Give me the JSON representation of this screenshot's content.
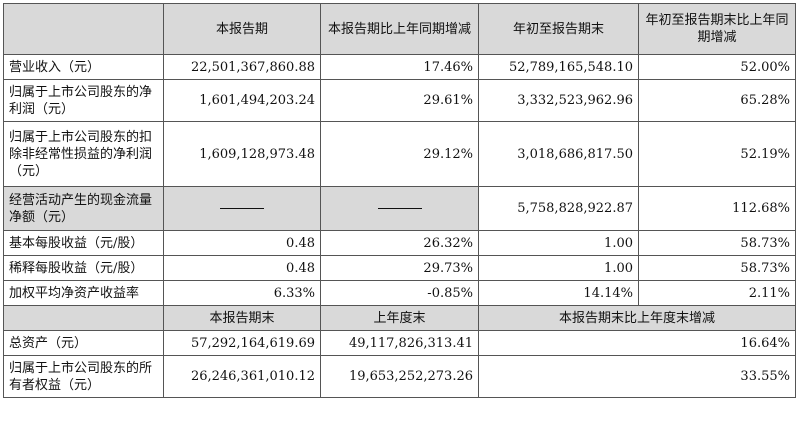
{
  "header": {
    "c1": "本报告期",
    "c2": "本报告期比上年同期增减",
    "c3": "年初至报告期末",
    "c4": "年初至报告期末比上年同期增减"
  },
  "rows": [
    {
      "label": "营业收入（元）",
      "v1": "22,501,367,860.88",
      "v2": "17.46%",
      "v3": "52,789,165,548.10",
      "v4": "52.00%"
    },
    {
      "label": "归属于上市公司股东的净利润（元）",
      "v1": "1,601,494,203.24",
      "v2": "29.61%",
      "v3": "3,332,523,962.96",
      "v4": "65.28%"
    },
    {
      "label": "归属于上市公司股东的扣除非经常性损益的净利润（元）",
      "v1": "1,609,128,973.48",
      "v2": "29.12%",
      "v3": "3,018,686,817.50",
      "v4": "52.19%"
    },
    {
      "label": "经营活动产生的现金流量净额（元）",
      "v1": "——",
      "v2": "——",
      "v3": "5,758,828,922.87",
      "v4": "112.68%"
    },
    {
      "label": "基本每股收益（元/股）",
      "v1": "0.48",
      "v2": "26.32%",
      "v3": "1.00",
      "v4": "58.73%"
    },
    {
      "label": "稀释每股收益（元/股）",
      "v1": "0.48",
      "v2": "29.73%",
      "v3": "1.00",
      "v4": "58.73%"
    },
    {
      "label": "加权平均净资产收益率",
      "v1": "6.33%",
      "v2": "-0.85%",
      "v3": "14.14%",
      "v4": "2.11%"
    }
  ],
  "header2": {
    "c1": "本报告期末",
    "c2": "上年度末",
    "c3": "本报告期末比上年度末增减"
  },
  "rows2": [
    {
      "label": "总资产（元）",
      "v1": "57,292,164,619.69",
      "v2": "49,117,826,313.41",
      "v3": "16.64%"
    },
    {
      "label": "归属于上市公司股东的所有者权益（元）",
      "v1": "26,246,361,010.12",
      "v2": "19,653,252,273.26",
      "v3": "33.55%"
    }
  ]
}
